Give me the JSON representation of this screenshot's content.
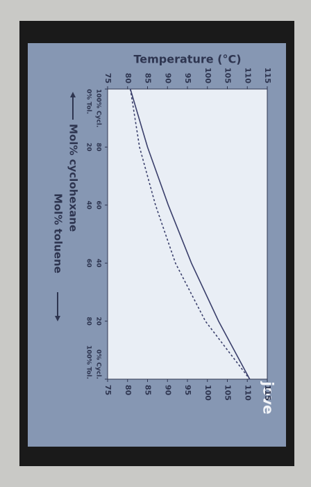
{
  "chart_data": {
    "type": "line",
    "y_label": "Temperature (°C)",
    "x_label": "Mol% cyclohexane",
    "x2_label": "Mol% toluene",
    "brand": "jove",
    "x": [
      100,
      80,
      60,
      40,
      20,
      0
    ],
    "series": [
      {
        "color": "#3a3f6b",
        "dash": false,
        "values": [
          80.7,
          85,
          90.2,
          96,
          102.8,
          110.6
        ]
      },
      {
        "color": "#3a3f6b",
        "dash": true,
        "values": [
          80.7,
          83,
          87,
          92,
          99.5,
          110.6
        ]
      }
    ],
    "xlim": [
      100,
      0
    ],
    "xticks": [
      {
        "value": 100,
        "label": "100% Cycl."
      },
      80,
      60,
      40,
      20,
      {
        "value": 0,
        "label": "0% Cycl."
      }
    ],
    "x2lim": [
      0,
      100
    ],
    "x2ticks": [
      {
        "value": 0,
        "label": "0% Tol."
      },
      20,
      40,
      60,
      80,
      {
        "value": 100,
        "label": "100% Tol."
      }
    ],
    "ylim": [
      75,
      115
    ],
    "yticks": [
      75,
      80,
      85,
      90,
      95,
      100,
      105,
      110,
      115
    ],
    "y2lim": [
      75,
      115
    ],
    "y2ticks": [
      75,
      80,
      85,
      90,
      95,
      100,
      105,
      110,
      115
    ]
  }
}
